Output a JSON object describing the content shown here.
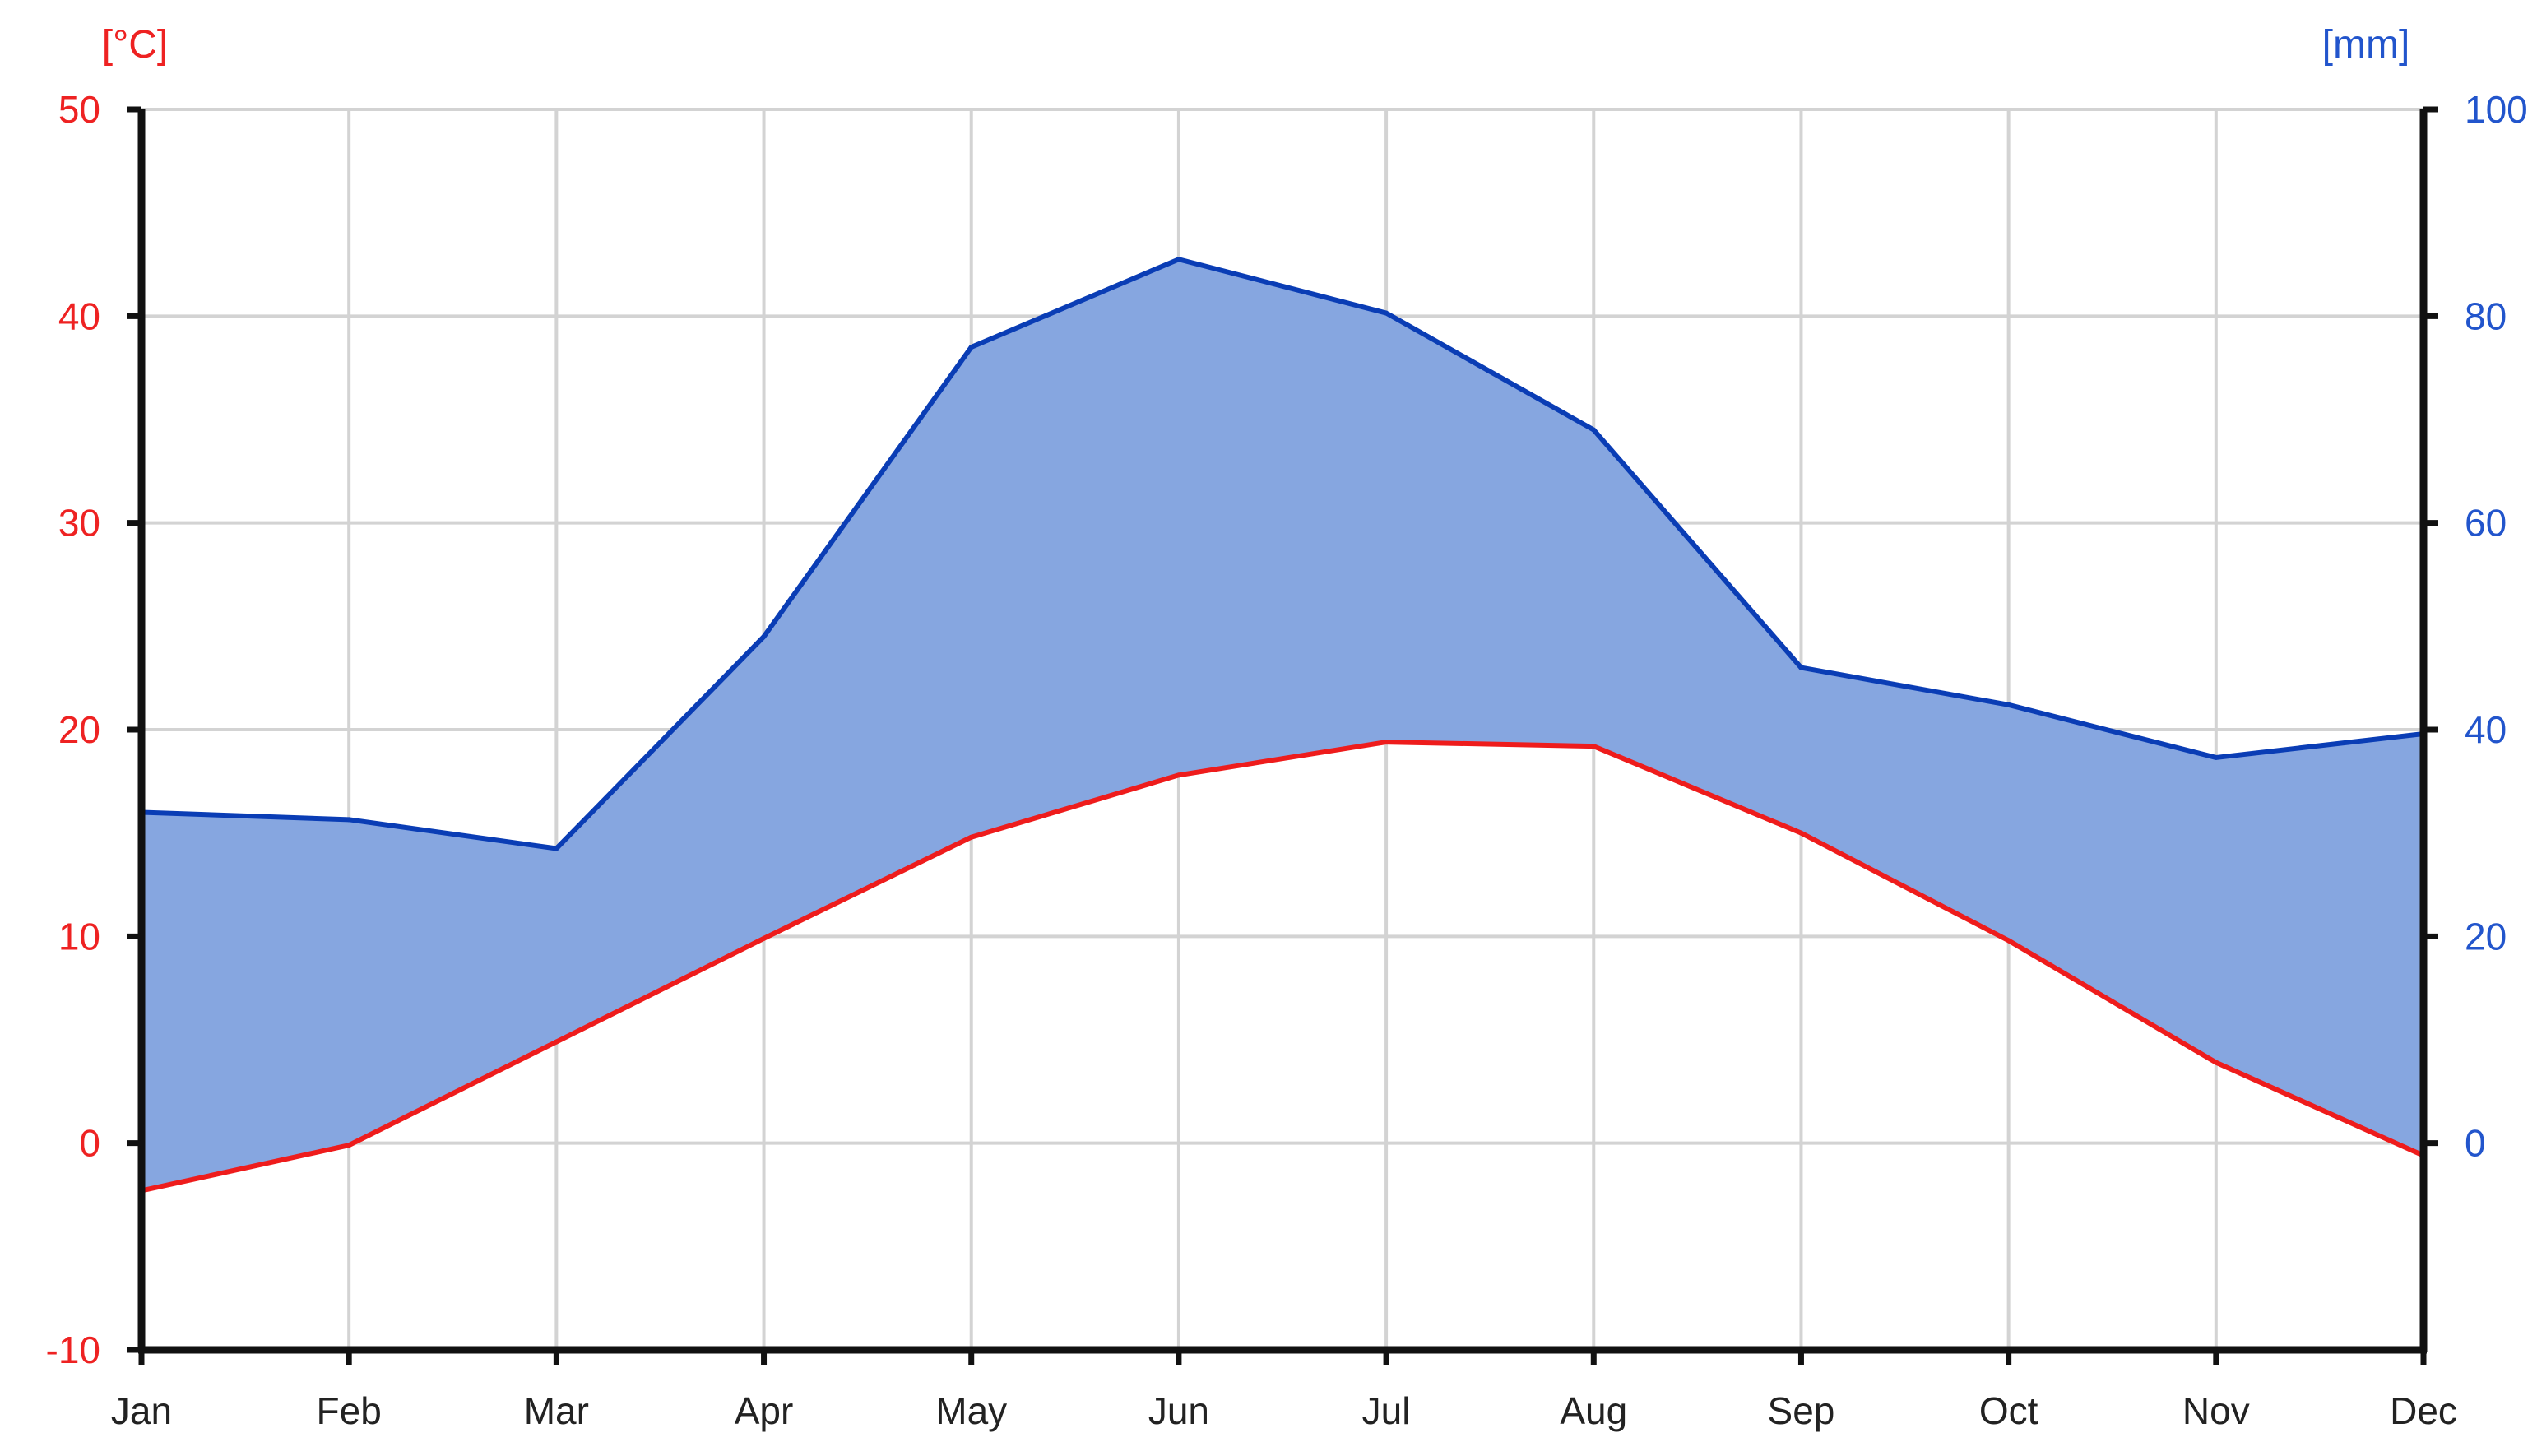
{
  "chart_data": {
    "type": "area",
    "categories": [
      "Jan",
      "Feb",
      "Mar",
      "Apr",
      "May",
      "Jun",
      "Jul",
      "Aug",
      "Sep",
      "Oct",
      "Nov",
      "Dec"
    ],
    "left_axis": {
      "unit": "[°C]",
      "ylim": [
        -10,
        50
      ],
      "ticks": [
        "-10",
        "0",
        "10",
        "20",
        "30",
        "40",
        "50"
      ],
      "color": "#ee2222"
    },
    "right_axis": {
      "unit": "[mm]",
      "ylim": [
        -20,
        100
      ],
      "ticks": [
        "0",
        "20",
        "40",
        "60",
        "80",
        "100"
      ],
      "color": "#2255cc"
    },
    "series": [
      {
        "axis": "left",
        "type": "line",
        "color": "#ee1c1c",
        "values": [
          -2.3,
          -0.1,
          4.9,
          9.9,
          14.8,
          17.8,
          19.4,
          19.2,
          15.0,
          9.8,
          3.9,
          -0.6
        ]
      },
      {
        "axis": "right",
        "type": "area",
        "color": "#0a3db5",
        "fill": "#86a6e0",
        "values": [
          32.0,
          31.3,
          28.5,
          49.0,
          77.0,
          85.5,
          80.3,
          69.0,
          46.0,
          42.4,
          37.3,
          39.6
        ]
      }
    ],
    "grid": true
  }
}
